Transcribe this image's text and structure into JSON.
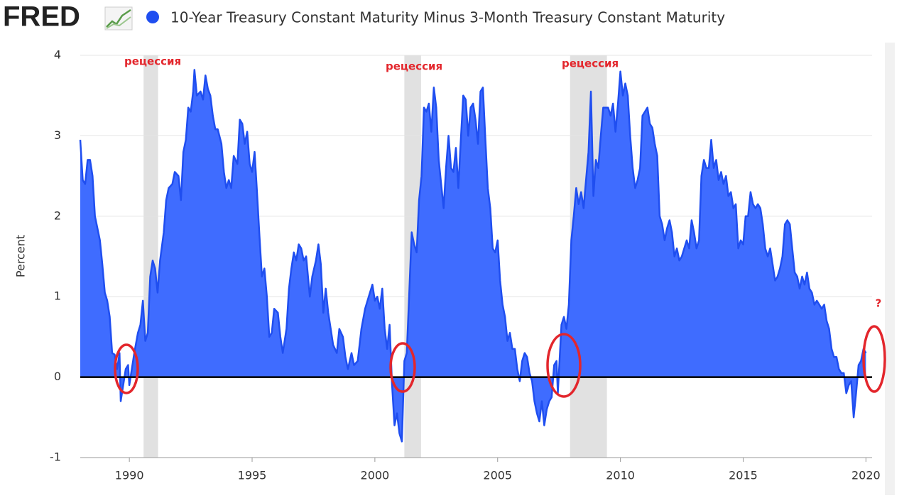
{
  "header": {
    "logo": "FRED"
  },
  "chart_data": {
    "type": "area",
    "y_label": "Percent",
    "xlim": [
      1988,
      2020.25
    ],
    "xticks": [
      1990,
      1995,
      2000,
      2005,
      2010,
      2015,
      2020
    ],
    "ylim": [
      -1,
      4
    ],
    "yticks": [
      -1,
      0,
      1,
      2,
      3,
      4
    ],
    "grid": true,
    "recessions": [
      [
        1990.58,
        1991.17
      ],
      [
        2001.2,
        2001.88
      ],
      [
        2007.95,
        2009.45
      ]
    ],
    "annotations": [
      "рецессия",
      "рецессия",
      "рецессия",
      "?"
    ],
    "series": [
      {
        "name": "10-Year Treasury Constant Maturity Minus 3-Month Treasury Constant Maturity",
        "color": "#1f4ef0",
        "fill": "#3f6cff",
        "x": [
          1988.0,
          1988.1,
          1988.2,
          1988.3,
          1988.4,
          1988.5,
          1988.6,
          1988.8,
          1988.9,
          1989.0,
          1989.1,
          1989.2,
          1989.3,
          1989.4,
          1989.5,
          1989.6,
          1989.65,
          1989.75,
          1989.85,
          1989.95,
          1990.0,
          1990.1,
          1990.2,
          1990.35,
          1990.45,
          1990.55,
          1990.65,
          1990.75,
          1990.85,
          1990.95,
          1991.05,
          1991.15,
          1991.25,
          1991.4,
          1991.5,
          1991.6,
          1991.75,
          1991.85,
          1992.0,
          1992.1,
          1992.2,
          1992.3,
          1992.4,
          1992.5,
          1992.6,
          1992.65,
          1992.75,
          1992.9,
          1993.0,
          1993.1,
          1993.2,
          1993.3,
          1993.4,
          1993.5,
          1993.6,
          1993.75,
          1993.85,
          1993.95,
          1994.05,
          1994.15,
          1994.25,
          1994.4,
          1994.5,
          1994.6,
          1994.7,
          1994.8,
          1994.9,
          1995.0,
          1995.1,
          1995.2,
          1995.3,
          1995.4,
          1995.5,
          1995.6,
          1995.7,
          1995.8,
          1995.9,
          1996.05,
          1996.15,
          1996.25,
          1996.4,
          1996.5,
          1996.6,
          1996.7,
          1996.8,
          1996.9,
          1997.0,
          1997.1,
          1997.2,
          1997.35,
          1997.45,
          1997.6,
          1997.7,
          1997.8,
          1997.9,
          1998.0,
          1998.1,
          1998.2,
          1998.3,
          1998.45,
          1998.55,
          1998.7,
          1998.8,
          1998.9,
          1999.05,
          1999.15,
          1999.3,
          1999.45,
          1999.6,
          1999.75,
          1999.9,
          2000.0,
          2000.1,
          2000.2,
          2000.3,
          2000.4,
          2000.5,
          2000.6,
          2000.7,
          2000.8,
          2000.9,
          2001.0,
          2001.1,
          2001.2,
          2001.3,
          2001.4,
          2001.5,
          2001.6,
          2001.7,
          2001.8,
          2001.9,
          2002.0,
          2002.1,
          2002.2,
          2002.3,
          2002.4,
          2002.5,
          2002.6,
          2002.7,
          2002.8,
          2002.9,
          2003.0,
          2003.1,
          2003.2,
          2003.3,
          2003.4,
          2003.5,
          2003.6,
          2003.7,
          2003.8,
          2003.9,
          2004.0,
          2004.1,
          2004.2,
          2004.3,
          2004.4,
          2004.5,
          2004.6,
          2004.7,
          2004.8,
          2004.9,
          2005.0,
          2005.1,
          2005.2,
          2005.3,
          2005.4,
          2005.5,
          2005.6,
          2005.7,
          2005.8,
          2005.9,
          2006.0,
          2006.1,
          2006.2,
          2006.3,
          2006.4,
          2006.5,
          2006.6,
          2006.7,
          2006.8,
          2006.9,
          2007.0,
          2007.1,
          2007.2,
          2007.3,
          2007.4,
          2007.45,
          2007.6,
          2007.7,
          2007.8,
          2007.9,
          2008.0,
          2008.1,
          2008.2,
          2008.3,
          2008.4,
          2008.5,
          2008.6,
          2008.7,
          2008.8,
          2008.9,
          2009.0,
          2009.1,
          2009.2,
          2009.3,
          2009.5,
          2009.6,
          2009.7,
          2009.8,
          2009.9,
          2010.0,
          2010.1,
          2010.2,
          2010.3,
          2010.4,
          2010.5,
          2010.6,
          2010.7,
          2010.8,
          2010.9,
          2011.0,
          2011.1,
          2011.2,
          2011.3,
          2011.4,
          2011.5,
          2011.6,
          2011.7,
          2011.8,
          2011.9,
          2012.0,
          2012.1,
          2012.2,
          2012.3,
          2012.4,
          2012.5,
          2012.6,
          2012.7,
          2012.8,
          2012.9,
          2013.0,
          2013.1,
          2013.2,
          2013.3,
          2013.4,
          2013.5,
          2013.6,
          2013.7,
          2013.8,
          2013.9,
          2014.0,
          2014.1,
          2014.2,
          2014.3,
          2014.4,
          2014.5,
          2014.6,
          2014.7,
          2014.8,
          2014.9,
          2015.0,
          2015.1,
          2015.2,
          2015.3,
          2015.4,
          2015.5,
          2015.6,
          2015.7,
          2015.8,
          2015.9,
          2016.0,
          2016.1,
          2016.2,
          2016.3,
          2016.4,
          2016.5,
          2016.6,
          2016.7,
          2016.8,
          2016.9,
          2017.0,
          2017.1,
          2017.2,
          2017.3,
          2017.4,
          2017.5,
          2017.6,
          2017.7,
          2017.8,
          2017.9,
          2018.0,
          2018.1,
          2018.2,
          2018.3,
          2018.4,
          2018.5,
          2018.6,
          2018.7,
          2018.8,
          2018.9,
          2019.0,
          2019.1,
          2019.2,
          2019.3,
          2019.4,
          2019.5,
          2019.6,
          2019.7,
          2019.8,
          2019.9,
          2020.0
        ],
        "values": [
          2.95,
          2.45,
          2.4,
          2.7,
          2.7,
          2.5,
          2.0,
          1.7,
          1.4,
          1.05,
          0.95,
          0.75,
          0.3,
          0.28,
          0.1,
          0.3,
          -0.3,
          -0.1,
          0.1,
          0.15,
          -0.1,
          0.1,
          0.3,
          0.55,
          0.65,
          0.95,
          0.45,
          0.55,
          1.25,
          1.45,
          1.35,
          1.05,
          1.45,
          1.8,
          2.2,
          2.35,
          2.4,
          2.55,
          2.5,
          2.2,
          2.8,
          2.95,
          3.35,
          3.3,
          3.55,
          3.82,
          3.5,
          3.55,
          3.45,
          3.75,
          3.58,
          3.5,
          3.25,
          3.08,
          3.08,
          2.9,
          2.55,
          2.35,
          2.45,
          2.35,
          2.75,
          2.65,
          3.2,
          3.15,
          2.9,
          3.05,
          2.65,
          2.55,
          2.8,
          2.3,
          1.75,
          1.25,
          1.35,
          1.0,
          0.5,
          0.55,
          0.85,
          0.8,
          0.5,
          0.3,
          0.6,
          1.1,
          1.35,
          1.55,
          1.45,
          1.65,
          1.6,
          1.45,
          1.5,
          1.0,
          1.25,
          1.45,
          1.65,
          1.4,
          0.8,
          1.1,
          0.8,
          0.6,
          0.4,
          0.3,
          0.6,
          0.5,
          0.25,
          0.1,
          0.3,
          0.15,
          0.2,
          0.6,
          0.85,
          1.0,
          1.15,
          0.95,
          1.0,
          0.85,
          1.1,
          0.6,
          0.35,
          0.65,
          -0.1,
          -0.6,
          -0.45,
          -0.7,
          -0.8,
          0.2,
          0.3,
          1.05,
          1.8,
          1.65,
          1.55,
          2.2,
          2.5,
          3.35,
          3.3,
          3.4,
          3.05,
          3.6,
          3.35,
          2.7,
          2.4,
          2.1,
          2.6,
          3.0,
          2.6,
          2.55,
          2.85,
          2.35,
          2.95,
          3.5,
          3.45,
          3.0,
          3.35,
          3.4,
          3.2,
          2.9,
          3.55,
          3.6,
          2.95,
          2.35,
          2.1,
          1.6,
          1.55,
          1.7,
          1.2,
          0.9,
          0.75,
          0.45,
          0.55,
          0.35,
          0.35,
          0.1,
          -0.05,
          0.2,
          0.3,
          0.25,
          0.05,
          -0.05,
          -0.3,
          -0.45,
          -0.55,
          -0.3,
          -0.6,
          -0.4,
          -0.3,
          -0.25,
          0.15,
          0.2,
          -0.2,
          0.65,
          0.75,
          0.6,
          0.9,
          1.7,
          2.0,
          2.35,
          2.15,
          2.3,
          2.1,
          2.45,
          2.8,
          3.55,
          2.25,
          2.7,
          2.6,
          3.0,
          3.35,
          3.35,
          3.25,
          3.4,
          3.05,
          3.4,
          3.8,
          3.5,
          3.65,
          3.5,
          3.0,
          2.6,
          2.35,
          2.45,
          2.6,
          3.25,
          3.3,
          3.35,
          3.15,
          3.1,
          2.9,
          2.75,
          2.0,
          1.9,
          1.7,
          1.85,
          1.95,
          1.8,
          1.5,
          1.6,
          1.45,
          1.5,
          1.6,
          1.7,
          1.6,
          1.95,
          1.8,
          1.6,
          1.7,
          2.5,
          2.7,
          2.6,
          2.6,
          2.95,
          2.6,
          2.7,
          2.45,
          2.55,
          2.4,
          2.5,
          2.25,
          2.3,
          2.1,
          2.15,
          1.6,
          1.7,
          1.65,
          2.0,
          2.0,
          2.3,
          2.15,
          2.1,
          2.15,
          2.1,
          1.9,
          1.6,
          1.5,
          1.6,
          1.4,
          1.2,
          1.25,
          1.35,
          1.5,
          1.9,
          1.95,
          1.9,
          1.6,
          1.3,
          1.25,
          1.1,
          1.25,
          1.15,
          1.3,
          1.1,
          1.05,
          0.9,
          0.95,
          0.9,
          0.85,
          0.9,
          0.7,
          0.6,
          0.35,
          0.25,
          0.25,
          0.1,
          0.05,
          0.05,
          -0.2,
          -0.1,
          -0.05,
          -0.5,
          -0.2,
          0.15,
          0.2,
          0.35,
          0.3
        ]
      }
    ]
  }
}
